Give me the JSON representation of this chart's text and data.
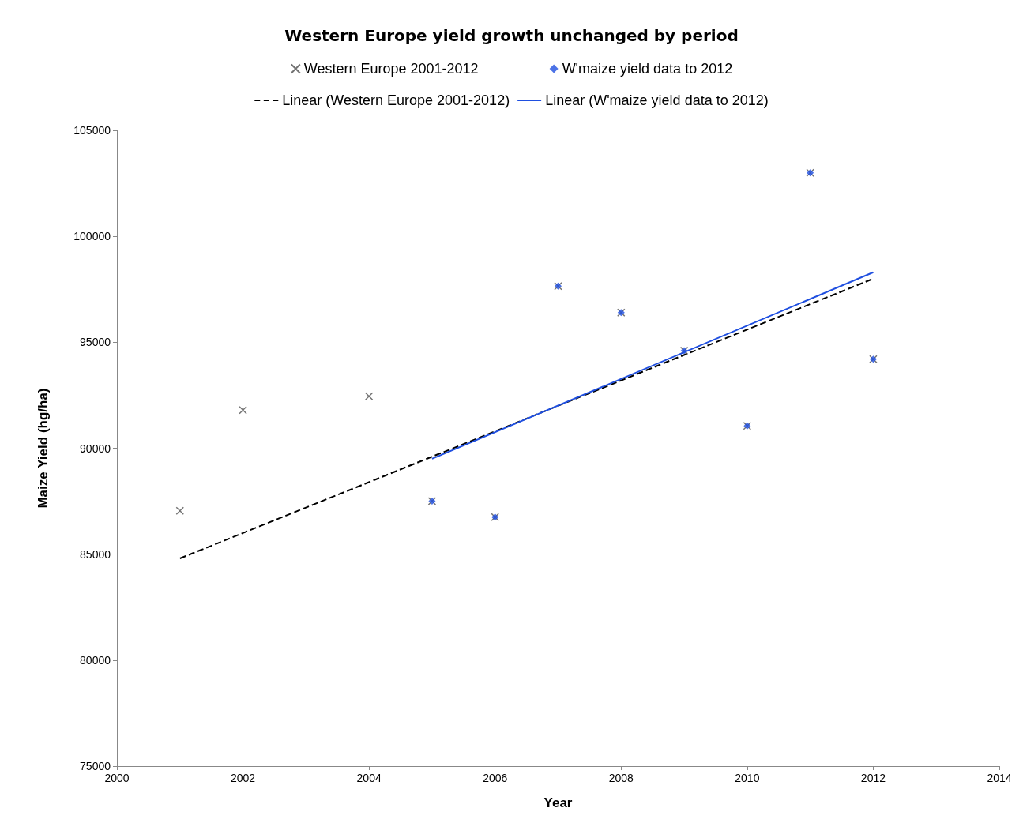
{
  "chart_data": {
    "type": "scatter",
    "title": "Western Europe yield growth unchanged by period",
    "xlabel": "Year",
    "ylabel": "Maize Yield (hg/ha)",
    "xlim": [
      2000,
      2014
    ],
    "xticks": [
      2000,
      2002,
      2004,
      2006,
      2008,
      2010,
      2012,
      2014
    ],
    "ylim": [
      75000,
      105000
    ],
    "yticks": [
      75000,
      80000,
      85000,
      90000,
      95000,
      100000,
      105000
    ],
    "grid": false,
    "legend": "top",
    "series": [
      {
        "name": "Western Europe 2001-2012",
        "marker": "cross",
        "color": "#505050",
        "x": [
          2001,
          2002,
          2004,
          2005,
          2006,
          2007,
          2008,
          2009,
          2010,
          2011,
          2012
        ],
        "values": [
          87050,
          91800,
          92450,
          87500,
          86750,
          97650,
          96400,
          94600,
          91050,
          103000,
          94200
        ]
      },
      {
        "name": "W'maize yield data to 2012",
        "marker": "diamond",
        "color": "#1f4fe0",
        "x": [
          2005,
          2006,
          2007,
          2008,
          2009,
          2010,
          2011,
          2012
        ],
        "values": [
          87500,
          86750,
          97650,
          96400,
          94600,
          91050,
          103000,
          94200
        ]
      },
      {
        "name": "Linear (Western Europe 2001-2012)",
        "type": "line",
        "marker": "none",
        "line_style": "dashed",
        "color": "#000000",
        "x": [
          2001,
          2012
        ],
        "values": [
          84800,
          98000
        ]
      },
      {
        "name": "Linear (W'maize yield data to 2012)",
        "type": "line",
        "marker": "none",
        "line_style": "solid",
        "color": "#1f4fe0",
        "x": [
          2005,
          2012
        ],
        "values": [
          89500,
          98300
        ]
      }
    ]
  }
}
